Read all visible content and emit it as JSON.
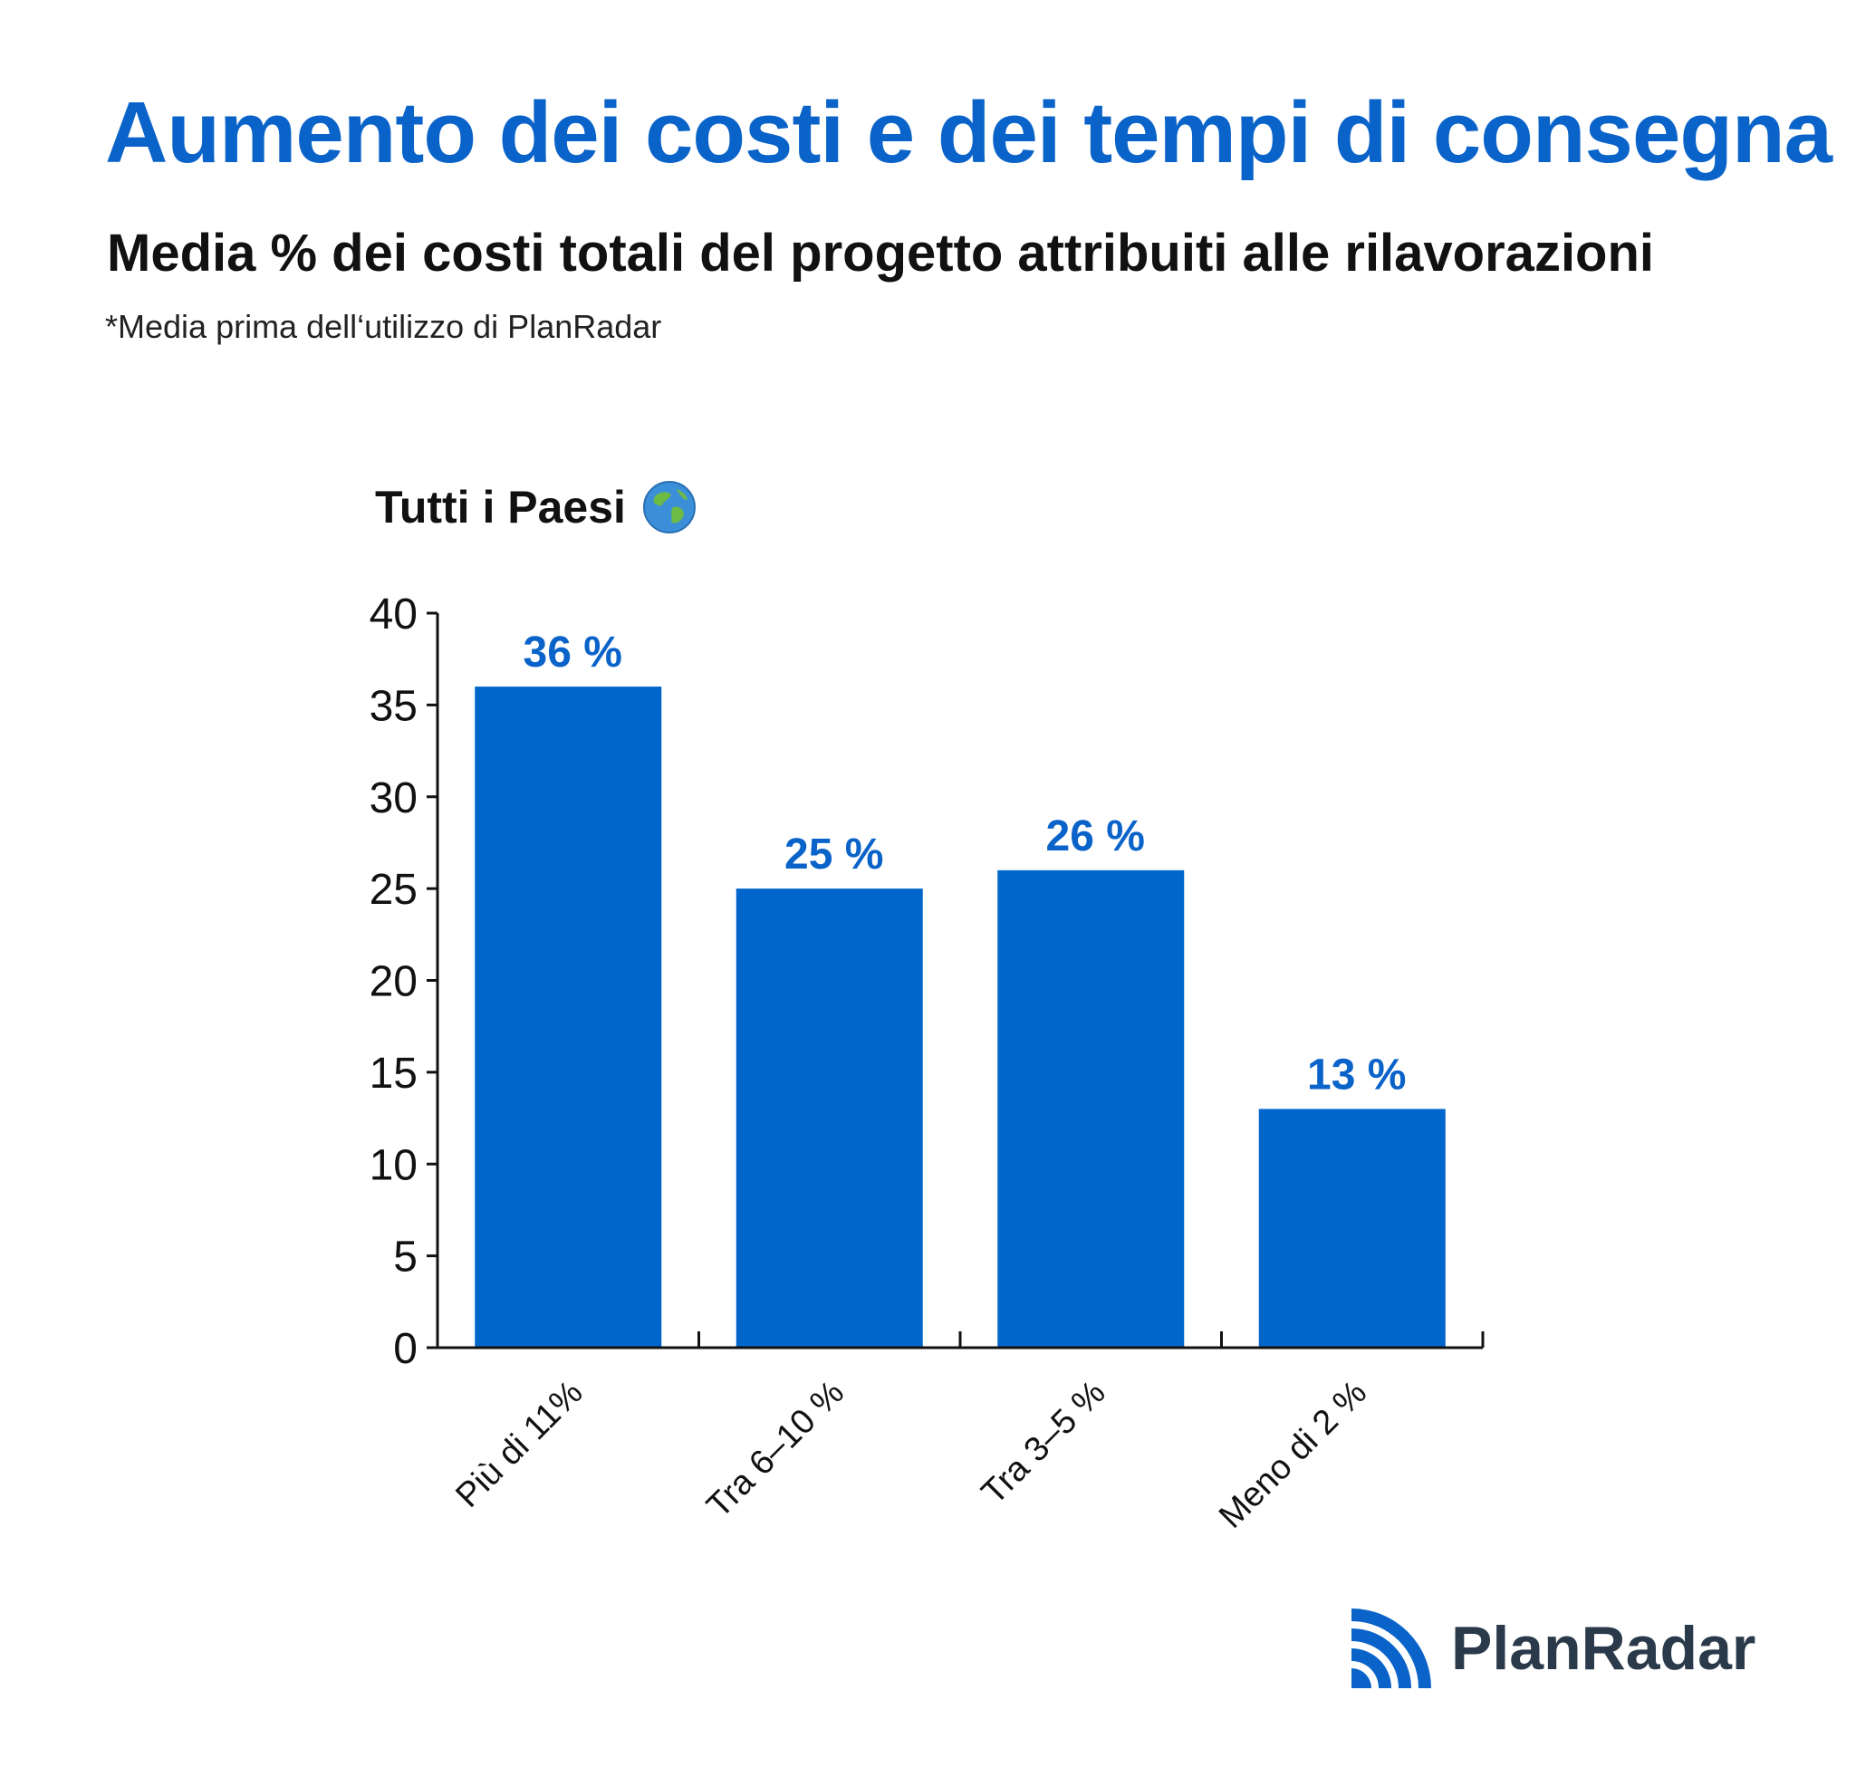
{
  "header": {
    "title": "Aumento dei costi e dei tempi di consegna",
    "subtitle": "Media % dei costi totali del progetto attribuiti alle rilavorazioni",
    "note": "*Media prima dell‘utilizzo di PlanRadar"
  },
  "chart_data": {
    "type": "bar",
    "title": "Tutti i Paesi",
    "title_icon": "globe-icon",
    "categories": [
      "Più di 11%",
      "Tra 6–10 %",
      "Tra 3–5 %",
      "Meno di 2 %"
    ],
    "values": [
      36,
      25,
      26,
      13
    ],
    "data_labels": [
      "36 %",
      "25 %",
      "26 %",
      "13 %"
    ],
    "xlabel": "",
    "ylabel": "",
    "ylim": [
      0,
      40
    ],
    "yticks": [
      0,
      5,
      10,
      15,
      20,
      25,
      30,
      35,
      40
    ],
    "grid": false,
    "bar_color": "#0066cc",
    "label_color": "#0a63c9"
  },
  "brand": {
    "name": "PlanRadar",
    "icon": "planradar-logo-icon",
    "color": "#2b3a4a",
    "accent": "#0a63c9"
  }
}
